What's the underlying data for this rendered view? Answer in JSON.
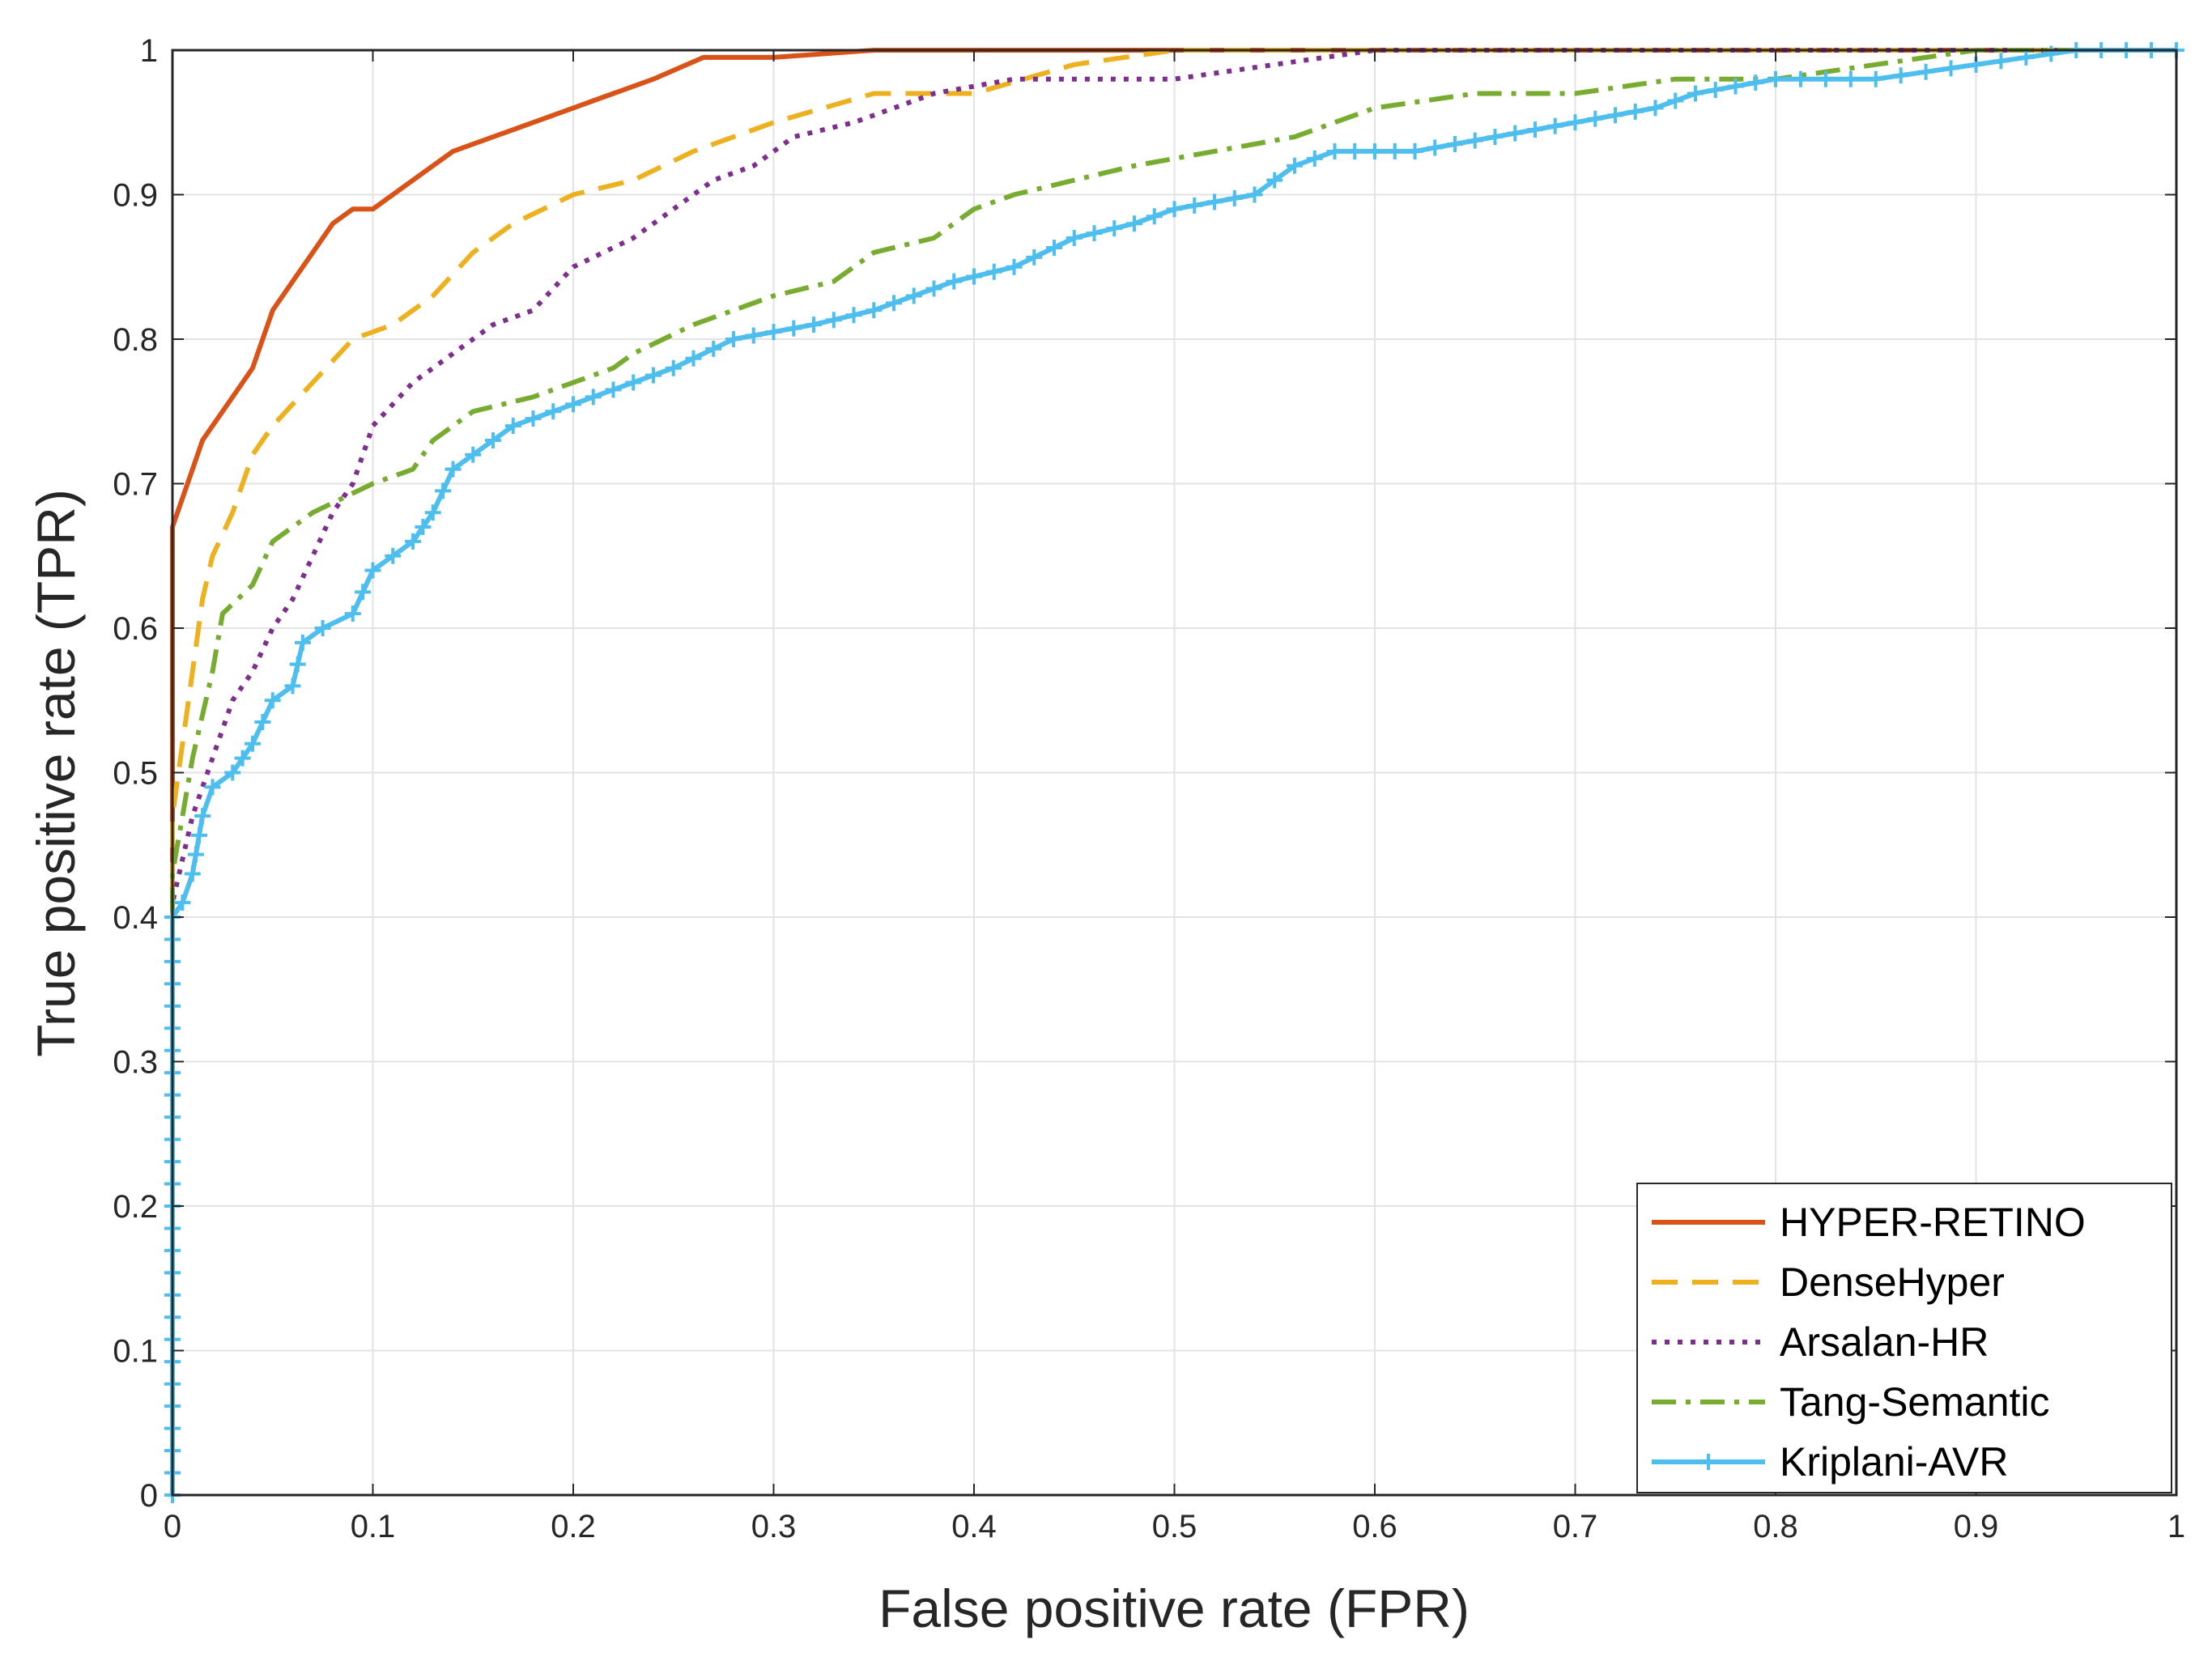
{
  "chart_data": {
    "type": "line",
    "title": "",
    "xlabel": "False positive rate (FPR)",
    "ylabel": "True positive rate (TPR)",
    "xlim": [
      0,
      1
    ],
    "ylim": [
      0,
      1
    ],
    "grid": true,
    "legend_position": "bottom-right",
    "xticks": [
      0,
      0.1,
      0.2,
      0.3,
      0.4,
      0.5,
      0.6,
      0.7,
      0.8,
      0.9,
      1
    ],
    "xtick_labels": [
      "0",
      "0.1",
      "0.2",
      "0.3",
      "0.4",
      "0.5",
      "0.6",
      "0.7",
      "0.8",
      "0.9",
      "1"
    ],
    "yticks": [
      0,
      0.1,
      0.2,
      0.3,
      0.4,
      0.5,
      0.6,
      0.7,
      0.8,
      0.9,
      1
    ],
    "ytick_labels": [
      "0",
      "0.1",
      "0.2",
      "0.3",
      "0.4",
      "0.5",
      "0.6",
      "0.7",
      "0.8",
      "0.9",
      "1"
    ],
    "series": [
      {
        "name": "HYPER-RETINO",
        "color": "#d95319",
        "style": "solid",
        "points": [
          [
            0,
            0
          ],
          [
            0,
            0.67
          ],
          [
            0.005,
            0.69
          ],
          [
            0.01,
            0.71
          ],
          [
            0.015,
            0.73
          ],
          [
            0.02,
            0.74
          ],
          [
            0.03,
            0.76
          ],
          [
            0.04,
            0.78
          ],
          [
            0.05,
            0.82
          ],
          [
            0.06,
            0.84
          ],
          [
            0.07,
            0.86
          ],
          [
            0.08,
            0.88
          ],
          [
            0.09,
            0.89
          ],
          [
            0.1,
            0.89
          ],
          [
            0.12,
            0.91
          ],
          [
            0.14,
            0.93
          ],
          [
            0.16,
            0.94
          ],
          [
            0.18,
            0.95
          ],
          [
            0.2,
            0.96
          ],
          [
            0.22,
            0.97
          ],
          [
            0.24,
            0.98
          ],
          [
            0.265,
            0.995
          ],
          [
            0.3,
            0.995
          ],
          [
            0.35,
            1.0
          ],
          [
            0.5,
            1.0
          ],
          [
            1.0,
            1.0
          ]
        ]
      },
      {
        "name": "DenseHyper",
        "color": "#edb120",
        "style": "dashed",
        "points": [
          [
            0,
            0
          ],
          [
            0,
            0.47
          ],
          [
            0.005,
            0.52
          ],
          [
            0.01,
            0.57
          ],
          [
            0.015,
            0.62
          ],
          [
            0.02,
            0.65
          ],
          [
            0.03,
            0.68
          ],
          [
            0.04,
            0.72
          ],
          [
            0.05,
            0.74
          ],
          [
            0.07,
            0.77
          ],
          [
            0.09,
            0.8
          ],
          [
            0.11,
            0.81
          ],
          [
            0.13,
            0.83
          ],
          [
            0.15,
            0.86
          ],
          [
            0.17,
            0.88
          ],
          [
            0.2,
            0.9
          ],
          [
            0.23,
            0.91
          ],
          [
            0.26,
            0.93
          ],
          [
            0.3,
            0.95
          ],
          [
            0.35,
            0.97
          ],
          [
            0.4,
            0.97
          ],
          [
            0.45,
            0.99
          ],
          [
            0.5,
            1.0
          ],
          [
            1.0,
            1.0
          ]
        ]
      },
      {
        "name": "Arsalan-HR",
        "color": "#7e2f8e",
        "style": "dotted",
        "points": [
          [
            0,
            0
          ],
          [
            0,
            0.41
          ],
          [
            0.01,
            0.47
          ],
          [
            0.02,
            0.51
          ],
          [
            0.03,
            0.55
          ],
          [
            0.04,
            0.57
          ],
          [
            0.05,
            0.6
          ],
          [
            0.06,
            0.62
          ],
          [
            0.07,
            0.65
          ],
          [
            0.08,
            0.68
          ],
          [
            0.09,
            0.7
          ],
          [
            0.1,
            0.74
          ],
          [
            0.12,
            0.77
          ],
          [
            0.14,
            0.79
          ],
          [
            0.16,
            0.81
          ],
          [
            0.18,
            0.82
          ],
          [
            0.2,
            0.85
          ],
          [
            0.23,
            0.87
          ],
          [
            0.25,
            0.89
          ],
          [
            0.27,
            0.91
          ],
          [
            0.29,
            0.92
          ],
          [
            0.31,
            0.94
          ],
          [
            0.34,
            0.95
          ],
          [
            0.38,
            0.97
          ],
          [
            0.42,
            0.98
          ],
          [
            0.5,
            0.98
          ],
          [
            0.55,
            0.99
          ],
          [
            0.6,
            1.0
          ],
          [
            1.0,
            1.0
          ]
        ]
      },
      {
        "name": "Tang-Semantic",
        "color": "#77ac30",
        "style": "dashdot",
        "points": [
          [
            0,
            0
          ],
          [
            0,
            0.43
          ],
          [
            0.01,
            0.51
          ],
          [
            0.02,
            0.57
          ],
          [
            0.025,
            0.61
          ],
          [
            0.04,
            0.63
          ],
          [
            0.05,
            0.66
          ],
          [
            0.07,
            0.68
          ],
          [
            0.1,
            0.7
          ],
          [
            0.12,
            0.71
          ],
          [
            0.13,
            0.73
          ],
          [
            0.15,
            0.75
          ],
          [
            0.18,
            0.76
          ],
          [
            0.22,
            0.78
          ],
          [
            0.23,
            0.79
          ],
          [
            0.26,
            0.81
          ],
          [
            0.28,
            0.82
          ],
          [
            0.3,
            0.83
          ],
          [
            0.33,
            0.84
          ],
          [
            0.35,
            0.86
          ],
          [
            0.38,
            0.87
          ],
          [
            0.4,
            0.89
          ],
          [
            0.42,
            0.9
          ],
          [
            0.45,
            0.91
          ],
          [
            0.48,
            0.92
          ],
          [
            0.52,
            0.93
          ],
          [
            0.56,
            0.94
          ],
          [
            0.6,
            0.96
          ],
          [
            0.65,
            0.97
          ],
          [
            0.7,
            0.97
          ],
          [
            0.75,
            0.98
          ],
          [
            0.8,
            0.98
          ],
          [
            0.85,
            0.99
          ],
          [
            0.9,
            1.0
          ],
          [
            1.0,
            1.0
          ]
        ]
      },
      {
        "name": "Kriplani-AVR",
        "color": "#4dbeee",
        "style": "solid-plus",
        "points": [
          [
            0,
            0
          ],
          [
            0,
            0.4
          ],
          [
            0.005,
            0.41
          ],
          [
            0.01,
            0.43
          ],
          [
            0.015,
            0.47
          ],
          [
            0.02,
            0.49
          ],
          [
            0.03,
            0.5
          ],
          [
            0.04,
            0.52
          ],
          [
            0.05,
            0.55
          ],
          [
            0.06,
            0.56
          ],
          [
            0.065,
            0.59
          ],
          [
            0.075,
            0.6
          ],
          [
            0.09,
            0.61
          ],
          [
            0.1,
            0.64
          ],
          [
            0.12,
            0.66
          ],
          [
            0.13,
            0.68
          ],
          [
            0.14,
            0.71
          ],
          [
            0.15,
            0.72
          ],
          [
            0.16,
            0.73
          ],
          [
            0.17,
            0.74
          ],
          [
            0.19,
            0.75
          ],
          [
            0.21,
            0.76
          ],
          [
            0.23,
            0.77
          ],
          [
            0.25,
            0.78
          ],
          [
            0.28,
            0.8
          ],
          [
            0.32,
            0.81
          ],
          [
            0.35,
            0.82
          ],
          [
            0.39,
            0.84
          ],
          [
            0.42,
            0.85
          ],
          [
            0.45,
            0.87
          ],
          [
            0.48,
            0.88
          ],
          [
            0.5,
            0.89
          ],
          [
            0.54,
            0.9
          ],
          [
            0.56,
            0.92
          ],
          [
            0.58,
            0.93
          ],
          [
            0.62,
            0.93
          ],
          [
            0.66,
            0.94
          ],
          [
            0.7,
            0.95
          ],
          [
            0.74,
            0.96
          ],
          [
            0.76,
            0.97
          ],
          [
            0.8,
            0.98
          ],
          [
            0.85,
            0.98
          ],
          [
            0.9,
            0.99
          ],
          [
            0.95,
            1.0
          ],
          [
            1.0,
            1.0
          ]
        ]
      }
    ]
  }
}
